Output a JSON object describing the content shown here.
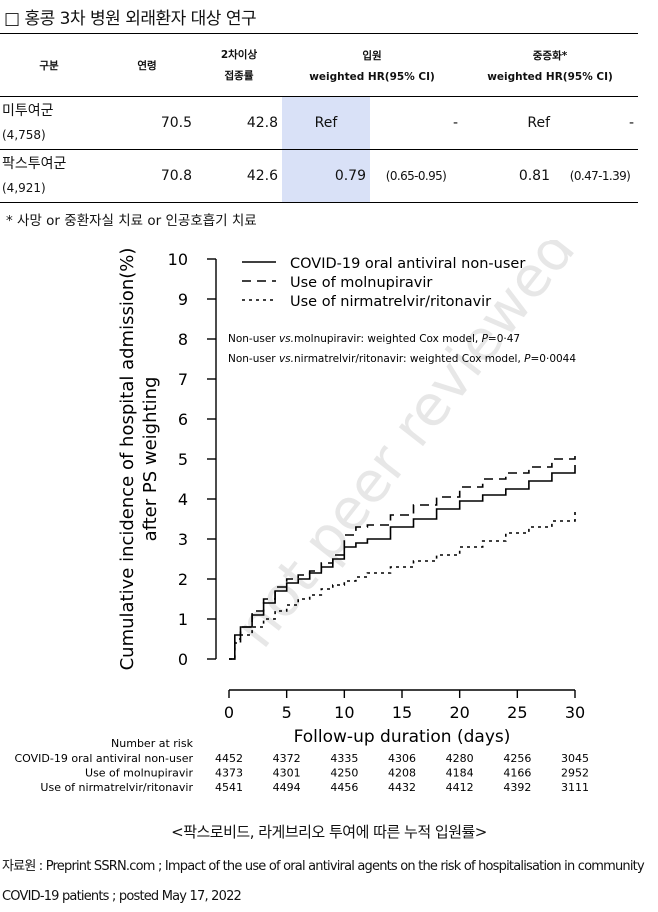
{
  "title": "□ 홍콩 3차 병원 외래환자 대상 연구",
  "table": {
    "headers": {
      "group": "구분",
      "age": "연령",
      "vacc_line1": "2차이상",
      "vacc_line2": "접종률",
      "adm_line1": "입원",
      "adm_line2": "weighted HR(95% CI)",
      "sev_line1": "중증화*",
      "sev_line2": "weighted HR(95% CI)"
    },
    "rows": [
      {
        "group": "미투여군",
        "n": "(4,758)",
        "age": "70.5",
        "vacc": "42.8",
        "adm_hr": "Ref",
        "adm_ci": "-",
        "sev_hr": "Ref",
        "sev_ci": "-"
      },
      {
        "group": "팍스투여군",
        "n": "(4,921)",
        "age": "70.8",
        "vacc": "42.6",
        "adm_hr": "0.79",
        "adm_ci": "(0.65-0.95)",
        "sev_hr": "0.81",
        "sev_ci": "(0.47-1.39)"
      }
    ]
  },
  "footnote": "* 사망 or 중환자실 치료 or 인공호흡기 치료",
  "chart_data": {
    "type": "line",
    "xlabel": "Follow-up duration (days)",
    "ylabel_line1": "Cumulative incidence of hospital admission(%)",
    "ylabel_line2": "after PS weighting",
    "xlim": [
      0,
      30
    ],
    "ylim": [
      0,
      10
    ],
    "x_ticks": [
      0,
      5,
      10,
      15,
      20,
      25,
      30
    ],
    "y_ticks": [
      0,
      1,
      2,
      3,
      4,
      5,
      6,
      7,
      8,
      9,
      10
    ],
    "series": [
      {
        "name": "COVID-19 oral antiviral non-user",
        "style": "solid",
        "x": [
          0,
          0.5,
          1,
          2,
          3,
          4,
          5,
          6,
          7,
          8,
          9,
          10,
          11,
          12,
          14,
          16,
          18,
          20,
          22,
          24,
          26,
          28,
          30
        ],
        "y": [
          0,
          0.6,
          0.8,
          1.1,
          1.4,
          1.7,
          1.9,
          2.0,
          2.15,
          2.3,
          2.5,
          2.8,
          2.9,
          3.0,
          3.3,
          3.5,
          3.75,
          3.95,
          4.1,
          4.25,
          4.45,
          4.65,
          4.85
        ]
      },
      {
        "name": "Use of molnupiravir",
        "style": "dashed",
        "x": [
          0,
          0.5,
          1,
          2,
          3,
          4,
          5,
          6,
          7,
          8,
          9,
          10,
          11,
          12,
          14,
          16,
          18,
          20,
          22,
          24,
          26,
          28,
          30
        ],
        "y": [
          0,
          0.5,
          0.8,
          1.2,
          1.5,
          1.8,
          2.0,
          2.1,
          2.2,
          2.4,
          2.6,
          3.1,
          3.3,
          3.35,
          3.6,
          3.85,
          4.05,
          4.3,
          4.5,
          4.65,
          4.8,
          5.0,
          5.1
        ]
      },
      {
        "name": "Use of nirmatrelvir/ritonavir",
        "style": "dotted",
        "x": [
          0,
          0.5,
          1,
          2,
          3,
          4,
          5,
          6,
          7,
          8,
          9,
          10,
          11,
          12,
          14,
          16,
          18,
          20,
          22,
          24,
          26,
          28,
          30
        ],
        "y": [
          0,
          0.4,
          0.6,
          0.8,
          1.0,
          1.2,
          1.35,
          1.5,
          1.6,
          1.75,
          1.85,
          1.95,
          2.05,
          2.15,
          2.3,
          2.45,
          2.6,
          2.8,
          2.95,
          3.15,
          3.3,
          3.45,
          3.7
        ]
      }
    ],
    "annotation1_pre": "Non-user ",
    "annotation1_vs": "vs.",
    "annotation1_post": "molnupiravir: weighted Cox model, ",
    "annotation1_p": "P",
    "annotation1_val": "=0·47",
    "annotation2_pre": "Non-user ",
    "annotation2_vs": "vs.",
    "annotation2_post": "nirmatrelvir/ritonavir: weighted Cox model, ",
    "annotation2_p": "P",
    "annotation2_val": "=0·0044",
    "watermark": "not peer reviewed",
    "risk": {
      "header": "Number at risk",
      "rows": [
        {
          "label": "COVID-19 oral antiviral non-user",
          "values": [
            "4452",
            "4372",
            "4335",
            "4306",
            "4280",
            "4256",
            "3045"
          ]
        },
        {
          "label": "Use of molnupiravir",
          "values": [
            "4373",
            "4301",
            "4250",
            "4208",
            "4184",
            "4166",
            "2952"
          ]
        },
        {
          "label": "Use of nirmatrelvir/ritonavir",
          "values": [
            "4541",
            "4494",
            "4456",
            "4432",
            "4412",
            "4392",
            "3111"
          ]
        }
      ]
    }
  },
  "caption": "<팍스로비드, 라게브리오 투여에 따른 누적 입원률>",
  "source": "자료원 : Preprint SSRN.com ; Impact of the use of oral antiviral agents on the risk of hospitalisation in community COVID-19 patients ; posted May 17, 2022"
}
